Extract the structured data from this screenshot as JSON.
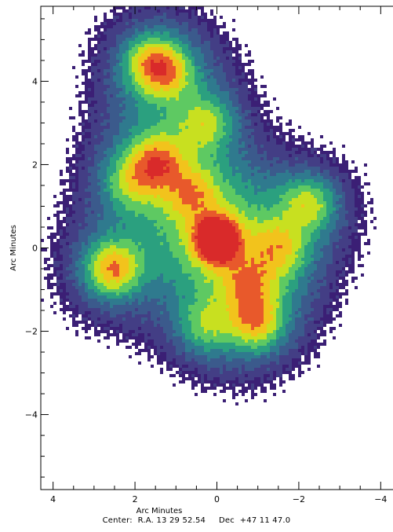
{
  "chart_data": {
    "type": "heatmap",
    "title": "",
    "xlabel": "Arc Minutes",
    "ylabel": "Arc Minutes",
    "xlim": [
      4.3,
      -4.3
    ],
    "ylim": [
      -5.8,
      5.8
    ],
    "x_ticks": [
      4,
      2,
      0,
      -2,
      -4
    ],
    "y_ticks": [
      4,
      2,
      0,
      -2,
      -4
    ],
    "x_tick_labels": [
      "4",
      "2",
      "0",
      "−2",
      "−4"
    ],
    "y_tick_labels": [
      "4",
      "2",
      "0",
      "−2",
      "−4"
    ],
    "colormap": [
      "#3b1f75",
      "#433e85",
      "#3b5a8c",
      "#2f7a8e",
      "#2ba07f",
      "#5ec962",
      "#c8e020",
      "#f2c31c",
      "#e8592b",
      "#d92a2a"
    ],
    "background_color": "#ffffff",
    "sources": [
      {
        "x": 0.0,
        "y": 0.2,
        "peak": 1.0
      },
      {
        "x": 2.55,
        "y": -0.5,
        "peak": 0.55
      },
      {
        "x": 1.45,
        "y": 2.05,
        "peak": 0.45
      },
      {
        "x": 1.6,
        "y": 4.45,
        "peak": 0.4
      },
      {
        "x": 1.2,
        "y": 4.2,
        "peak": 0.33
      },
      {
        "x": 0.25,
        "y": 3.0,
        "peak": 0.32
      },
      {
        "x": -0.95,
        "y": -1.8,
        "peak": 0.42
      },
      {
        "x": -2.25,
        "y": 1.05,
        "peak": 0.38
      },
      {
        "x": -1.55,
        "y": 0.0,
        "peak": 0.32
      },
      {
        "x": 0.6,
        "y": 1.3,
        "peak": 0.3
      },
      {
        "x": 2.1,
        "y": 1.6,
        "peak": 0.28
      },
      {
        "x": 0.3,
        "y": -1.9,
        "peak": 0.26
      },
      {
        "x": -0.8,
        "y": -0.9,
        "peak": 0.3
      }
    ]
  },
  "caption": {
    "center_label": "Center:",
    "ra_label": "R.A.",
    "ra_value": "13 29 52.54",
    "dec_label": "Dec",
    "dec_value": "+47 11 47.0"
  }
}
